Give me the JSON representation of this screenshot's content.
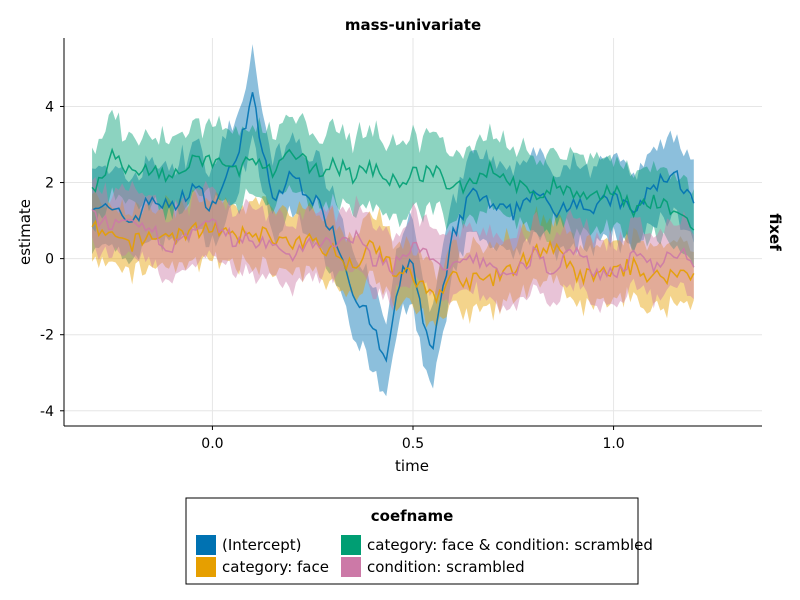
{
  "chart_data": {
    "type": "line",
    "title": "mass-univariate",
    "xlabel": "time",
    "ylabel": "estimate",
    "facet_label": "fixef",
    "xlim": [
      -0.37,
      1.37
    ],
    "ylim": [
      -4.4,
      5.8
    ],
    "x_ticks": [
      0.0,
      0.5,
      1.0
    ],
    "x_tick_labels": [
      "0.0",
      "0.5",
      "1.0"
    ],
    "y_ticks": [
      -4,
      -2,
      0,
      2,
      4
    ],
    "y_tick_labels": [
      "-4",
      "-2",
      "0",
      "2",
      "4"
    ],
    "grid": true,
    "legend": {
      "title": "coefname",
      "placement": "bottom"
    },
    "x_range": [
      -0.3,
      1.2
    ],
    "series": [
      {
        "name": "(Intercept)",
        "color": "#0072B2",
        "band_halfwidth": 1.1,
        "values_by_x": [
          [
            -0.3,
            1.5
          ],
          [
            -0.25,
            1.2
          ],
          [
            -0.2,
            1.0
          ],
          [
            -0.15,
            1.6
          ],
          [
            -0.1,
            1.3
          ],
          [
            -0.05,
            1.9
          ],
          [
            0.0,
            1.4
          ],
          [
            0.05,
            2.4
          ],
          [
            0.1,
            4.2
          ],
          [
            0.15,
            1.5
          ],
          [
            0.2,
            2.2
          ],
          [
            0.25,
            1.6
          ],
          [
            0.3,
            0.8
          ],
          [
            0.35,
            -0.8
          ],
          [
            0.4,
            -1.8
          ],
          [
            0.43,
            -2.8
          ],
          [
            0.47,
            -0.5
          ],
          [
            0.5,
            0.0
          ],
          [
            0.53,
            -2.0
          ],
          [
            0.55,
            -2.4
          ],
          [
            0.6,
            0.6
          ],
          [
            0.65,
            1.8
          ],
          [
            0.7,
            1.3
          ],
          [
            0.75,
            1.2
          ],
          [
            0.8,
            1.8
          ],
          [
            0.85,
            1.2
          ],
          [
            0.9,
            1.6
          ],
          [
            0.95,
            1.3
          ],
          [
            1.0,
            1.6
          ],
          [
            1.05,
            1.2
          ],
          [
            1.1,
            1.9
          ],
          [
            1.15,
            2.3
          ],
          [
            1.2,
            1.4
          ]
        ]
      },
      {
        "name": "category: face",
        "color": "#E69F00",
        "band_halfwidth": 0.85,
        "values_by_x": [
          [
            -0.3,
            0.8
          ],
          [
            -0.25,
            0.5
          ],
          [
            -0.2,
            0.4
          ],
          [
            -0.15,
            0.6
          ],
          [
            -0.1,
            0.6
          ],
          [
            -0.05,
            0.7
          ],
          [
            0.0,
            0.9
          ],
          [
            0.05,
            0.5
          ],
          [
            0.1,
            0.7
          ],
          [
            0.15,
            0.6
          ],
          [
            0.2,
            0.3
          ],
          [
            0.25,
            0.5
          ],
          [
            0.3,
            0.2
          ],
          [
            0.35,
            -0.2
          ],
          [
            0.4,
            0.5
          ],
          [
            0.45,
            -0.3
          ],
          [
            0.5,
            -0.5
          ],
          [
            0.55,
            -1.0
          ],
          [
            0.6,
            -0.5
          ],
          [
            0.65,
            -0.6
          ],
          [
            0.7,
            -0.5
          ],
          [
            0.75,
            -0.3
          ],
          [
            0.8,
            0.2
          ],
          [
            0.85,
            0.3
          ],
          [
            0.9,
            -0.4
          ],
          [
            0.95,
            -0.5
          ],
          [
            1.0,
            -0.3
          ],
          [
            1.05,
            -0.2
          ],
          [
            1.1,
            -0.5
          ],
          [
            1.15,
            -0.4
          ],
          [
            1.2,
            -0.4
          ]
        ]
      },
      {
        "name": "category: face & condition: scrambled",
        "color": "#009E73",
        "band_halfwidth": 1.0,
        "values_by_x": [
          [
            -0.3,
            1.8
          ],
          [
            -0.25,
            2.7
          ],
          [
            -0.2,
            2.2
          ],
          [
            -0.15,
            2.4
          ],
          [
            -0.1,
            2.1
          ],
          [
            -0.05,
            2.5
          ],
          [
            0.0,
            2.6
          ],
          [
            0.05,
            2.3
          ],
          [
            0.1,
            2.6
          ],
          [
            0.15,
            2.2
          ],
          [
            0.2,
            2.8
          ],
          [
            0.25,
            2.3
          ],
          [
            0.3,
            2.5
          ],
          [
            0.35,
            2.2
          ],
          [
            0.4,
            2.4
          ],
          [
            0.45,
            2.0
          ],
          [
            0.5,
            2.2
          ],
          [
            0.55,
            2.3
          ],
          [
            0.6,
            1.8
          ],
          [
            0.65,
            2.1
          ],
          [
            0.7,
            2.4
          ],
          [
            0.75,
            2.0
          ],
          [
            0.8,
            1.6
          ],
          [
            0.85,
            1.9
          ],
          [
            0.9,
            1.7
          ],
          [
            0.95,
            1.5
          ],
          [
            1.0,
            1.9
          ],
          [
            1.05,
            1.3
          ],
          [
            1.1,
            1.5
          ],
          [
            1.15,
            1.2
          ],
          [
            1.2,
            0.9
          ]
        ]
      },
      {
        "name": "condition: scrambled",
        "color": "#CC79A7",
        "band_halfwidth": 0.9,
        "values_by_x": [
          [
            -0.3,
            1.1
          ],
          [
            -0.25,
            0.9
          ],
          [
            -0.2,
            0.8
          ],
          [
            -0.15,
            0.7
          ],
          [
            -0.1,
            0.3
          ],
          [
            -0.05,
            0.6
          ],
          [
            0.0,
            0.9
          ],
          [
            0.05,
            0.5
          ],
          [
            0.1,
            0.5
          ],
          [
            0.15,
            0.3
          ],
          [
            0.2,
            0.1
          ],
          [
            0.25,
            0.5
          ],
          [
            0.3,
            0.3
          ],
          [
            0.35,
            0.6
          ],
          [
            0.4,
            0.0
          ],
          [
            0.45,
            -0.2
          ],
          [
            0.5,
            0.4
          ],
          [
            0.55,
            -0.1
          ],
          [
            0.6,
            -0.3
          ],
          [
            0.65,
            0.0
          ],
          [
            0.7,
            -0.2
          ],
          [
            0.75,
            -0.5
          ],
          [
            0.8,
            0.1
          ],
          [
            0.85,
            -0.3
          ],
          [
            0.9,
            0.3
          ],
          [
            0.95,
            -0.3
          ],
          [
            1.0,
            -0.4
          ],
          [
            1.05,
            0.0
          ],
          [
            1.1,
            -0.2
          ],
          [
            1.15,
            0.2
          ],
          [
            1.2,
            0.0
          ]
        ]
      }
    ]
  }
}
